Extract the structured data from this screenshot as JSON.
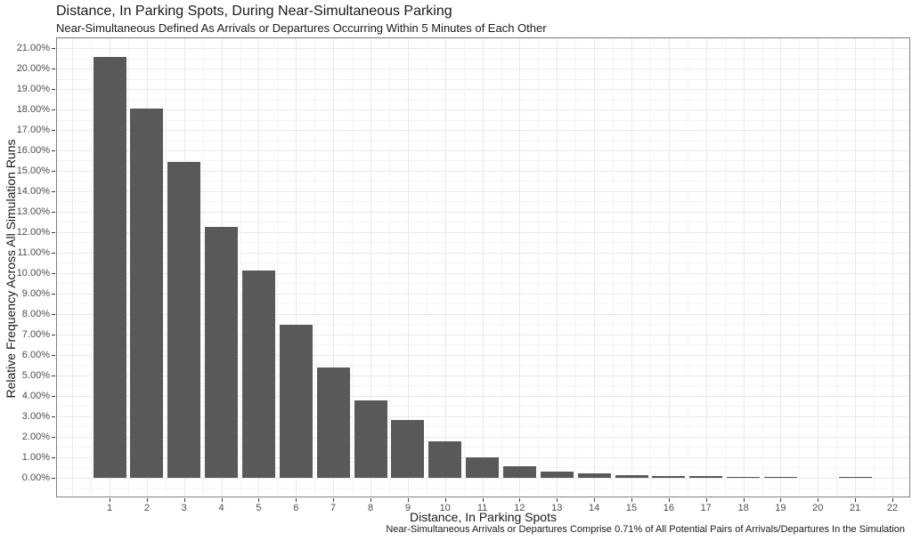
{
  "chart_data": {
    "type": "bar",
    "title": "Distance, In Parking Spots, During Near-Simultaneous Parking",
    "subtitle": "Near-Simultaneous Defined As Arrivals or Departures Occurring Within 5 Minutes of Each Other",
    "caption": "Near-Simultaneous Arrivals or Departures Comprise 0.71% of All Potential Pairs of Arrivals/Departures In the Simulation",
    "xlabel": "Distance, In Parking Spots",
    "ylabel": "Relative Frequency Across All Simulation Runs",
    "categories": [
      "1",
      "2",
      "3",
      "4",
      "5",
      "6",
      "7",
      "8",
      "9",
      "10",
      "11",
      "12",
      "13",
      "14",
      "15",
      "16",
      "17",
      "18",
      "19",
      "20",
      "21",
      "22"
    ],
    "values": [
      20.55,
      18.05,
      15.42,
      12.25,
      10.12,
      7.48,
      5.38,
      3.77,
      2.82,
      1.77,
      1.0,
      0.57,
      0.3,
      0.23,
      0.13,
      0.09,
      0.07,
      0.05,
      0.05,
      0.0,
      0.04,
      0.0
    ],
    "value_unit": "percent",
    "ylim": [
      -0.96,
      21.52
    ],
    "ytick_step": 1,
    "ytick_labels": [
      "0.00%",
      "1.00%",
      "2.00%",
      "3.00%",
      "4.00%",
      "5.00%",
      "6.00%",
      "7.00%",
      "8.00%",
      "9.00%",
      "10.00%",
      "11.00%",
      "12.00%",
      "13.00%",
      "14.00%",
      "15.00%",
      "16.00%",
      "17.00%",
      "18.00%",
      "19.00%",
      "20.00%",
      "21.00%"
    ],
    "grid": "horizontal and vertical, major plus minor, light gray on white",
    "legend_position": "none",
    "colors": {
      "bar": "#595959",
      "grid_major": "#e9e9e9",
      "grid_minor": "#f4f4f4",
      "panel_border": "#808080",
      "tick": "#343434",
      "tick_label": "#4d4d4d",
      "text": "#1a1a1a",
      "background": "#ffffff"
    }
  }
}
